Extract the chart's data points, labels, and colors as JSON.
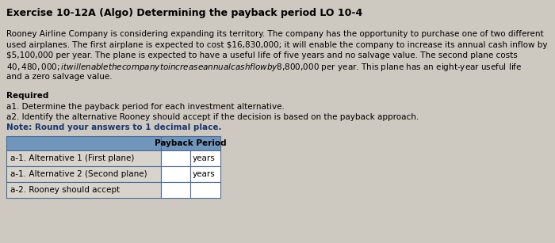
{
  "title": "Exercise 10-12A (Algo) Determining the payback period LO 10-4",
  "body_line1": "Rooney Airline Company is considering expanding its territory. The company has the opportunity to purchase one of two different",
  "body_line2": "used airplanes. The first airplane is expected to cost $16,830,000; it will enable the company to increase its annual cash inflow by",
  "body_line3": "$5,100,000 per year. The plane is expected to have a useful life of five years and no salvage value. The second plane costs",
  "body_line4": "$40,480,000; it will enable the company to increase annual cash flow by $8,800,000 per year. This plane has an eight-year useful life",
  "body_line5": "and a zero salvage value.",
  "required_label": "Required",
  "req_a1": "a1. Determine the payback period for each investment alternative.",
  "req_a2": "a2. Identify the alternative Rooney should accept if the decision is based on the payback approach.",
  "note": "Note: Round your answers to 1 decimal place.",
  "table_header": "Payback Period",
  "row1_label": "a-1. Alternative 1 (First plane)",
  "row2_label": "a-1. Alternative 2 (Second plane)",
  "row3_label": "a-2. Rooney should accept",
  "unit": "years",
  "bg_color": "#cdc8c0",
  "table_header_bg": "#7096bc",
  "table_cell_bg": "#ffffff",
  "table_border_color": "#4a6a9a",
  "table_label_bg": "#d8d4cc",
  "title_fontsize": 9.0,
  "body_fontsize": 7.5,
  "table_fontsize": 7.5
}
